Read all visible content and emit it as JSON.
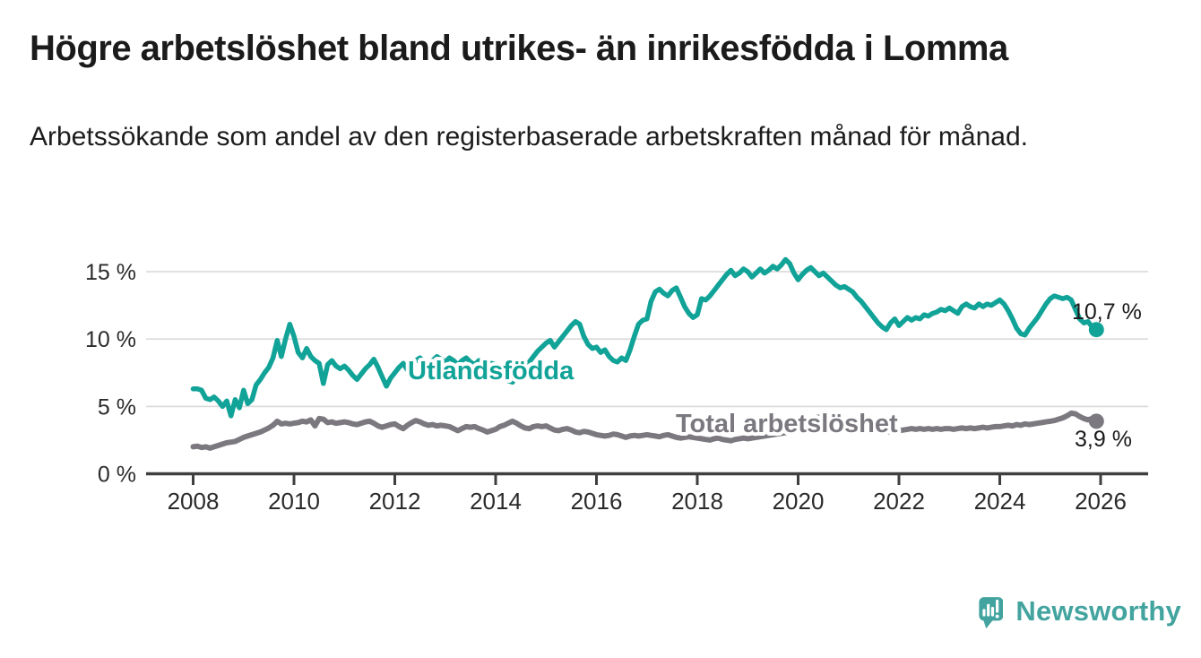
{
  "header": {
    "title": "Högre arbetslöshet bland utrikes- än inrikesfödda i Lomma",
    "subtitle": "Arbetssökande som andel av den registerbaserade arbetskraften månad för månad."
  },
  "footer": {
    "brand": "Newsworthy"
  },
  "colors": {
    "accent_teal": "#12a398",
    "line_gray": "#7b797f",
    "grid": "#d9d9d9",
    "axis": "#3f3f3f",
    "text": "#1b1b1b"
  },
  "chart_data": {
    "type": "line",
    "title": "Högre arbetslöshet bland utrikes- än inrikesfödda i Lomma",
    "subtitle": "Arbetssökande som andel av den registerbaserade arbetskraften månad för månad.",
    "frequency": "monthly",
    "start_year": 2008,
    "start_month": 1,
    "grid": "horizontal",
    "legend_position": "inline-labels",
    "x_axis": {
      "label": "",
      "range": [
        2007.05,
        2026.95
      ],
      "tick_values": [
        2008,
        2010,
        2012,
        2014,
        2016,
        2018,
        2020,
        2022,
        2024,
        2026
      ],
      "tick_labels": [
        "2008",
        "2010",
        "2012",
        "2014",
        "2016",
        "2018",
        "2020",
        "2022",
        "2024",
        "2026"
      ]
    },
    "y_axis": {
      "label": "",
      "unit": "%",
      "range": [
        0,
        16.5
      ],
      "tick_values": [
        0,
        5,
        10,
        15
      ],
      "tick_labels": [
        "0 %",
        "5 %",
        "10 %",
        "15 %"
      ]
    },
    "series": [
      {
        "name": "Utlandsfödda",
        "color": "#12a398",
        "end_label": "10,7 %",
        "end_value": 10.7,
        "values": [
          6.3,
          6.3,
          6.2,
          5.6,
          5.5,
          5.7,
          5.4,
          5.0,
          5.4,
          4.3,
          5.5,
          4.9,
          6.2,
          5.2,
          5.5,
          6.6,
          7.0,
          7.5,
          7.9,
          8.6,
          9.9,
          8.7,
          10.0,
          11.1,
          10.2,
          9.0,
          8.6,
          9.3,
          8.7,
          8.4,
          8.2,
          6.7,
          8.1,
          8.4,
          8.0,
          7.8,
          8.0,
          7.7,
          7.3,
          7.0,
          7.4,
          7.8,
          8.1,
          8.5,
          7.9,
          7.2,
          6.5,
          7.1,
          7.5,
          7.9,
          8.2,
          7.7,
          8.0,
          8.4,
          8.6,
          8.3,
          8.0,
          8.4,
          8.7,
          8.5,
          8.3,
          8.6,
          8.4,
          8.1,
          8.4,
          8.6,
          8.3,
          8.1,
          8.4,
          8.2,
          8.0,
          8.2,
          8.1,
          7.8,
          7.3,
          6.9,
          6.8,
          7.2,
          7.5,
          7.9,
          8.3,
          8.7,
          9.1,
          9.4,
          9.7,
          9.9,
          9.4,
          9.8,
          10.2,
          10.6,
          11.0,
          11.3,
          11.1,
          10.2,
          9.6,
          9.3,
          9.4,
          9.0,
          9.2,
          8.7,
          8.4,
          8.3,
          8.6,
          8.4,
          9.2,
          10.2,
          11.1,
          11.4,
          11.5,
          12.8,
          13.5,
          13.7,
          13.4,
          13.2,
          13.6,
          13.8,
          13.1,
          12.4,
          11.9,
          11.6,
          11.8,
          13.0,
          12.9,
          13.2,
          13.6,
          14.0,
          14.4,
          14.8,
          15.1,
          14.7,
          14.9,
          15.2,
          15.0,
          14.6,
          14.9,
          15.2,
          14.9,
          15.1,
          15.4,
          15.2,
          15.5,
          15.9,
          15.6,
          14.9,
          14.4,
          14.8,
          15.1,
          15.3,
          15.0,
          14.7,
          14.9,
          14.6,
          14.3,
          14.0,
          13.8,
          13.9,
          13.7,
          13.5,
          13.1,
          12.8,
          12.4,
          12.0,
          11.6,
          11.2,
          10.9,
          10.7,
          11.2,
          11.5,
          11.0,
          11.3,
          11.6,
          11.4,
          11.6,
          11.5,
          11.8,
          11.7,
          11.9,
          12.0,
          12.2,
          12.1,
          12.3,
          12.1,
          11.9,
          12.4,
          12.6,
          12.4,
          12.3,
          12.6,
          12.4,
          12.6,
          12.5,
          12.7,
          12.9,
          12.6,
          12.1,
          11.5,
          10.8,
          10.4,
          10.3,
          10.8,
          11.2,
          11.6,
          12.1,
          12.6,
          13.0,
          13.2,
          13.1,
          13.0,
          13.1,
          12.9,
          12.2,
          11.5,
          11.2,
          11.3,
          10.9,
          10.7
        ]
      },
      {
        "name": "Total arbetslöshet",
        "color": "#7b797f",
        "end_label": "3,9 %",
        "end_value": 3.9,
        "values": [
          2.0,
          2.05,
          1.95,
          2.0,
          1.9,
          2.0,
          2.1,
          2.2,
          2.3,
          2.35,
          2.4,
          2.55,
          2.7,
          2.8,
          2.9,
          3.0,
          3.1,
          3.25,
          3.4,
          3.6,
          3.9,
          3.7,
          3.75,
          3.7,
          3.75,
          3.8,
          3.9,
          3.85,
          4.0,
          3.55,
          4.1,
          4.05,
          3.8,
          3.85,
          3.75,
          3.8,
          3.85,
          3.8,
          3.7,
          3.65,
          3.75,
          3.85,
          3.9,
          3.75,
          3.55,
          3.45,
          3.55,
          3.65,
          3.7,
          3.5,
          3.35,
          3.6,
          3.8,
          3.95,
          3.85,
          3.7,
          3.6,
          3.65,
          3.55,
          3.6,
          3.55,
          3.5,
          3.35,
          3.2,
          3.35,
          3.5,
          3.45,
          3.5,
          3.35,
          3.25,
          3.1,
          3.2,
          3.3,
          3.5,
          3.6,
          3.75,
          3.9,
          3.75,
          3.55,
          3.4,
          3.35,
          3.5,
          3.55,
          3.5,
          3.55,
          3.4,
          3.25,
          3.2,
          3.3,
          3.35,
          3.25,
          3.1,
          3.05,
          3.15,
          3.1,
          3.0,
          2.9,
          2.85,
          2.8,
          2.85,
          2.95,
          2.9,
          2.8,
          2.7,
          2.8,
          2.85,
          2.8,
          2.85,
          2.9,
          2.85,
          2.8,
          2.75,
          2.85,
          2.9,
          2.8,
          2.7,
          2.65,
          2.7,
          2.75,
          2.7,
          2.65,
          2.6,
          2.55,
          2.5,
          2.6,
          2.65,
          2.55,
          2.5,
          2.45,
          2.55,
          2.6,
          2.65,
          2.6,
          2.65,
          2.7,
          2.75,
          2.8,
          2.85,
          2.9,
          2.95,
          3.0,
          3.05,
          3.1,
          3.2,
          3.35,
          3.55,
          3.8,
          4.05,
          4.15,
          4.2,
          4.1,
          4.0,
          3.9,
          3.8,
          3.7,
          3.65,
          3.6,
          3.55,
          3.45,
          3.4,
          3.3,
          3.25,
          3.2,
          3.15,
          3.1,
          3.1,
          3.15,
          3.2,
          3.2,
          3.25,
          3.3,
          3.35,
          3.3,
          3.35,
          3.3,
          3.35,
          3.3,
          3.35,
          3.3,
          3.35,
          3.35,
          3.3,
          3.35,
          3.4,
          3.35,
          3.4,
          3.35,
          3.4,
          3.45,
          3.4,
          3.45,
          3.5,
          3.5,
          3.55,
          3.6,
          3.55,
          3.65,
          3.6,
          3.7,
          3.65,
          3.7,
          3.75,
          3.8,
          3.85,
          3.9,
          3.95,
          4.05,
          4.15,
          4.3,
          4.5,
          4.45,
          4.25,
          4.1,
          4.0,
          4.1,
          3.9
        ]
      }
    ]
  }
}
